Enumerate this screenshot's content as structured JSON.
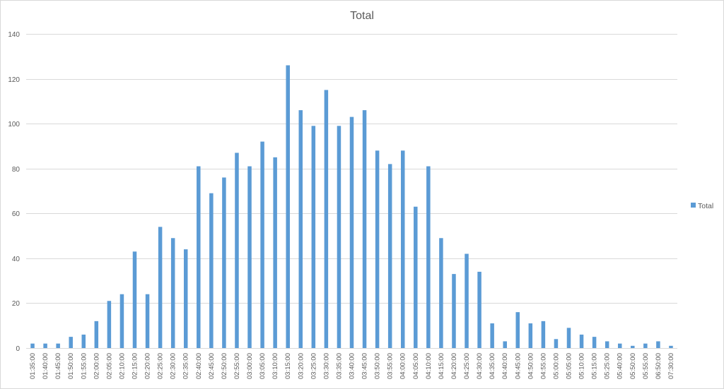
{
  "chart_data": {
    "type": "bar",
    "title": "Total",
    "xlabel": "",
    "ylabel": "",
    "ylim": [
      0,
      140
    ],
    "yticks": [
      0,
      20,
      40,
      60,
      80,
      100,
      120,
      140
    ],
    "grid": true,
    "legend_position": "right",
    "bar_color": "#5b9bd5",
    "categories": [
      "01:35:00",
      "01:40:00",
      "01:45:00",
      "01:50:00",
      "01:55:00",
      "02:00:00",
      "02:05:00",
      "02:10:00",
      "02:15:00",
      "02:20:00",
      "02:25:00",
      "02:30:00",
      "02:35:00",
      "02:40:00",
      "02:45:00",
      "02:50:00",
      "02:55:00",
      "03:00:00",
      "03:05:00",
      "03:10:00",
      "03:15:00",
      "03:20:00",
      "03:25:00",
      "03:30:00",
      "03:35:00",
      "03:40:00",
      "03:45:00",
      "03:50:00",
      "03:55:00",
      "04:00:00",
      "04:05:00",
      "04:10:00",
      "04:15:00",
      "04:20:00",
      "04:25:00",
      "04:30:00",
      "04:35:00",
      "04:40:00",
      "04:45:00",
      "04:50:00",
      "04:55:00",
      "05:00:00",
      "05:05:00",
      "05:10:00",
      "05:15:00",
      "05:25:00",
      "05:40:00",
      "05:50:00",
      "05:55:00",
      "06:50:00",
      "07:30:00"
    ],
    "series": [
      {
        "name": "Total",
        "values": [
          2,
          2,
          2,
          5,
          6,
          12,
          21,
          24,
          43,
          24,
          54,
          49,
          44,
          81,
          69,
          76,
          87,
          81,
          92,
          85,
          126,
          106,
          99,
          115,
          99,
          103,
          106,
          88,
          82,
          88,
          63,
          81,
          49,
          33,
          42,
          34,
          11,
          3,
          16,
          11,
          12,
          4,
          9,
          6,
          5,
          3,
          2,
          1,
          2,
          3,
          1
        ]
      }
    ]
  }
}
